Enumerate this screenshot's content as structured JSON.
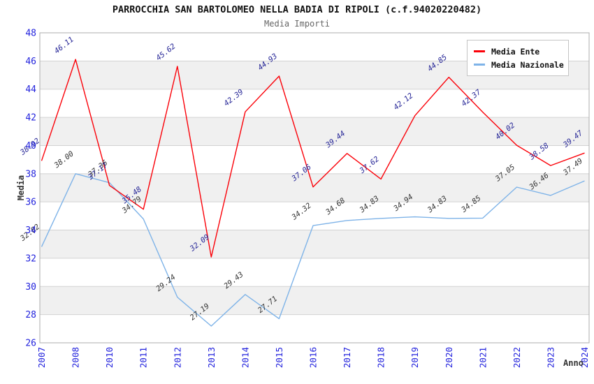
{
  "header": {
    "title": "PARROCCHIA SAN BARTOLOMEO NELLA BADIA DI RIPOLI (c.f.94020220482)",
    "subtitle": "Media Importi"
  },
  "chart_data": {
    "type": "line",
    "title": "PARROCCHIA SAN BARTOLOMEO NELLA BADIA DI RIPOLI (c.f.94020220482)",
    "subtitle": "Media Importi",
    "xlabel": "Anno",
    "ylabel": "Media",
    "ylim": [
      26,
      48
    ],
    "ytick_step": 2,
    "yticks": [
      26,
      28,
      30,
      32,
      34,
      36,
      38,
      40,
      42,
      44,
      46,
      48
    ],
    "categories": [
      "2007",
      "2008",
      "2010",
      "2011",
      "2012",
      "2013",
      "2014",
      "2015",
      "2016",
      "2017",
      "2018",
      "2019",
      "2020",
      "2021",
      "2022",
      "2023",
      "2024"
    ],
    "series": [
      {
        "name": "Media Nazionale",
        "color": "#7eb3e8",
        "label_color": "#333333",
        "values": [
          32.82,
          38.0,
          37.36,
          34.79,
          29.24,
          27.19,
          29.43,
          27.71,
          34.32,
          34.68,
          34.83,
          34.94,
          34.83,
          34.85,
          37.05,
          36.46,
          37.49
        ]
      },
      {
        "name": "Media Ente",
        "color": "#fb0008",
        "label_color": "#242496",
        "values": [
          38.92,
          46.11,
          37.17,
          35.48,
          45.62,
          32.09,
          42.39,
          44.93,
          37.06,
          39.44,
          37.62,
          42.12,
          44.85,
          42.37,
          40.02,
          38.58,
          39.47
        ]
      }
    ],
    "legend_position": "top-right",
    "grid": true,
    "band_colors": [
      "#ffffff",
      "#f0f0f0"
    ],
    "gridline_color": "#d2d2d2",
    "plot_border_color": "#adadad",
    "axis_tick_color": "#2222dd",
    "title_color": "#111111",
    "subtitle_color": "#666666"
  }
}
